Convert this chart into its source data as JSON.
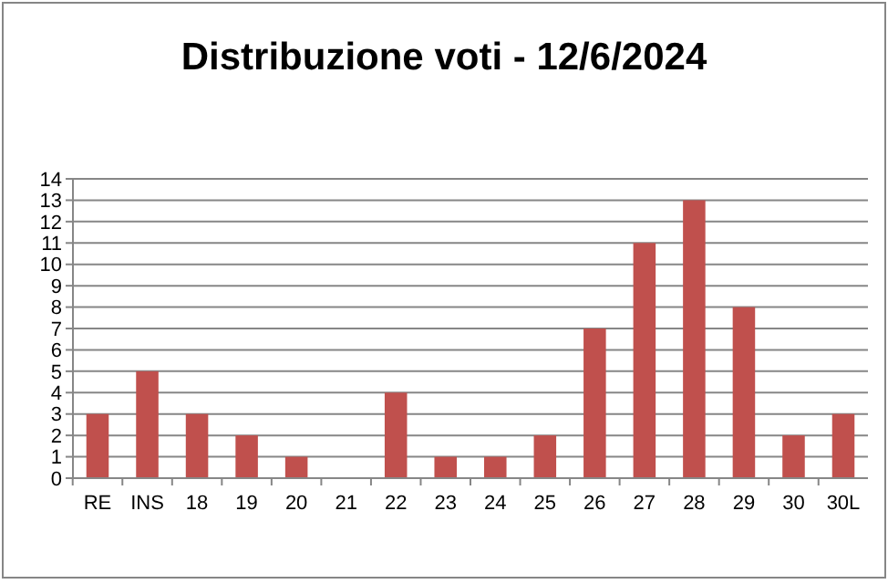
{
  "chart_data": {
    "type": "bar",
    "title": "Distribuzione voti - 12/6/2024",
    "categories": [
      "RE",
      "INS",
      "18",
      "19",
      "20",
      "21",
      "22",
      "23",
      "24",
      "25",
      "26",
      "27",
      "28",
      "29",
      "30",
      "30L"
    ],
    "values": [
      3,
      5,
      3,
      2,
      1,
      0,
      4,
      1,
      1,
      2,
      7,
      11,
      13,
      8,
      2,
      3
    ],
    "color": "#c0504d",
    "ylim": [
      0,
      14
    ],
    "yticks": [
      0,
      1,
      2,
      3,
      4,
      5,
      6,
      7,
      8,
      9,
      10,
      11,
      12,
      13,
      14
    ],
    "grid": "y"
  }
}
